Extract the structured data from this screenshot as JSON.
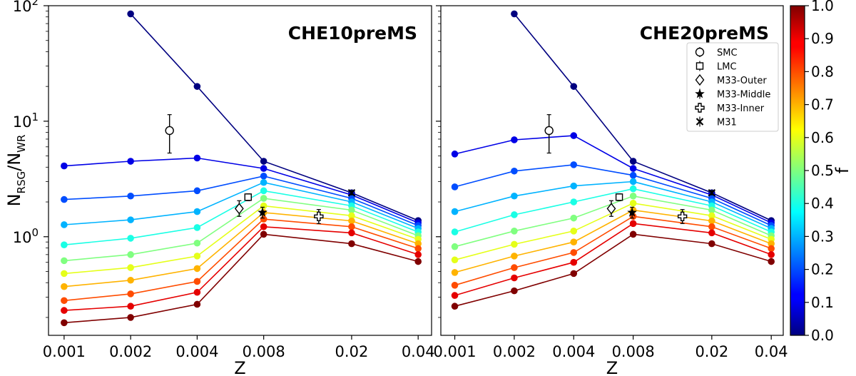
{
  "chart_data": [
    {
      "type": "line",
      "title": "CHE10preMS",
      "xlabel": "Z",
      "ylabel": "N_RSG/N_WR",
      "xscale": "log",
      "yscale": "log",
      "xticks": [
        "0.001",
        "0.002",
        "0.004",
        "0.008",
        "0.02",
        "0.04"
      ],
      "x": [
        0.001,
        0.002,
        0.004,
        0.008,
        0.02,
        0.04
      ],
      "color_variable": "f",
      "series": [
        {
          "f": 0.0,
          "values": [
            null,
            85,
            20,
            4.5,
            2.4,
            1.38
          ]
        },
        {
          "f": 0.1,
          "values": [
            4.1,
            4.5,
            4.8,
            3.9,
            2.3,
            1.32
          ]
        },
        {
          "f": 0.2,
          "values": [
            2.1,
            2.25,
            2.5,
            3.35,
            2.15,
            1.25
          ]
        },
        {
          "f": 0.3,
          "values": [
            1.27,
            1.4,
            1.65,
            2.95,
            2.0,
            1.18
          ]
        },
        {
          "f": 0.4,
          "values": [
            0.85,
            0.97,
            1.2,
            2.5,
            1.85,
            1.1
          ]
        },
        {
          "f": 0.5,
          "values": [
            0.62,
            0.7,
            0.88,
            2.15,
            1.7,
            1.02
          ]
        },
        {
          "f": 0.6,
          "values": [
            0.48,
            0.54,
            0.68,
            1.85,
            1.52,
            0.95
          ]
        },
        {
          "f": 0.7,
          "values": [
            0.37,
            0.42,
            0.53,
            1.62,
            1.37,
            0.87
          ]
        },
        {
          "f": 0.8,
          "values": [
            0.28,
            0.32,
            0.41,
            1.42,
            1.22,
            0.79
          ]
        },
        {
          "f": 0.9,
          "values": [
            0.23,
            0.25,
            0.33,
            1.22,
            1.08,
            0.7
          ]
        },
        {
          "f": 1.0,
          "values": [
            0.18,
            0.2,
            0.26,
            1.05,
            0.87,
            0.61
          ]
        }
      ],
      "observations": [
        {
          "name": "SMC",
          "marker": "circle",
          "x": 0.003,
          "y": 8.3,
          "err_low": 5.3,
          "err_high": 11.4
        },
        {
          "name": "LMC",
          "marker": "square",
          "x": 0.0068,
          "y": 2.2,
          "err_low": 2.05,
          "err_high": 2.35
        },
        {
          "name": "M33-Outer",
          "marker": "diamond",
          "x": 0.0062,
          "y": 1.75,
          "err_low": 1.5,
          "err_high": 2.05
        },
        {
          "name": "M33-Middle",
          "marker": "star",
          "x": 0.0079,
          "y": 1.62,
          "err_low": 1.45,
          "err_high": 1.8
        },
        {
          "name": "M33-Inner",
          "marker": "plus",
          "x": 0.0142,
          "y": 1.5,
          "err_low": 1.3,
          "err_high": 1.72
        },
        {
          "name": "M31",
          "marker": "x",
          "x": 0.02,
          "y": 2.4,
          "err_low": 2.3,
          "err_high": 2.5
        }
      ]
    },
    {
      "type": "line",
      "title": "CHE20preMS",
      "xlabel": "Z",
      "xscale": "log",
      "yscale": "log",
      "xticks": [
        "0.001",
        "0.002",
        "0.004",
        "0.008",
        "0.02",
        "0.04"
      ],
      "x": [
        0.001,
        0.002,
        0.004,
        0.008,
        0.02,
        0.04
      ],
      "color_variable": "f",
      "series": [
        {
          "f": 0.0,
          "values": [
            null,
            85,
            20,
            4.5,
            2.4,
            1.38
          ]
        },
        {
          "f": 0.1,
          "values": [
            5.2,
            6.9,
            7.5,
            3.9,
            2.3,
            1.32
          ]
        },
        {
          "f": 0.2,
          "values": [
            2.7,
            3.7,
            4.2,
            3.4,
            2.15,
            1.25
          ]
        },
        {
          "f": 0.3,
          "values": [
            1.65,
            2.25,
            2.75,
            3.0,
            2.0,
            1.18
          ]
        },
        {
          "f": 0.4,
          "values": [
            1.1,
            1.55,
            2.0,
            2.6,
            1.85,
            1.1
          ]
        },
        {
          "f": 0.5,
          "values": [
            0.82,
            1.12,
            1.45,
            2.25,
            1.7,
            1.02
          ]
        },
        {
          "f": 0.6,
          "values": [
            0.63,
            0.86,
            1.12,
            1.95,
            1.52,
            0.95
          ]
        },
        {
          "f": 0.7,
          "values": [
            0.49,
            0.68,
            0.9,
            1.7,
            1.37,
            0.87
          ]
        },
        {
          "f": 0.8,
          "values": [
            0.38,
            0.54,
            0.73,
            1.5,
            1.22,
            0.79
          ]
        },
        {
          "f": 0.9,
          "values": [
            0.31,
            0.44,
            0.6,
            1.3,
            1.08,
            0.7
          ]
        },
        {
          "f": 1.0,
          "values": [
            0.25,
            0.34,
            0.48,
            1.05,
            0.87,
            0.61
          ]
        }
      ],
      "observations": [
        {
          "name": "SMC",
          "marker": "circle",
          "x": 0.003,
          "y": 8.3,
          "err_low": 5.3,
          "err_high": 11.4
        },
        {
          "name": "LMC",
          "marker": "square",
          "x": 0.0068,
          "y": 2.2,
          "err_low": 2.05,
          "err_high": 2.35
        },
        {
          "name": "M33-Outer",
          "marker": "diamond",
          "x": 0.0062,
          "y": 1.75,
          "err_low": 1.5,
          "err_high": 2.05
        },
        {
          "name": "M33-Middle",
          "marker": "star",
          "x": 0.0079,
          "y": 1.62,
          "err_low": 1.45,
          "err_high": 1.8
        },
        {
          "name": "M33-Inner",
          "marker": "plus",
          "x": 0.0142,
          "y": 1.5,
          "err_low": 1.3,
          "err_high": 1.72
        },
        {
          "name": "M31",
          "marker": "x",
          "x": 0.02,
          "y": 2.4,
          "err_low": 2.3,
          "err_high": 2.5
        }
      ]
    }
  ],
  "y_tick_labels": {
    "base": "10",
    "exps": [
      "0",
      "1",
      "2"
    ]
  },
  "legend": {
    "placement": "top-right of right panel",
    "entries": [
      "SMC",
      "LMC",
      "M33-Outer",
      "M33-Middle",
      "M33-Inner",
      "M31"
    ]
  },
  "colorbar": {
    "label": "f",
    "colormap": "jet",
    "min": 0.0,
    "max": 1.0,
    "ticks": [
      "0.0",
      "0.1",
      "0.2",
      "0.3",
      "0.4",
      "0.5",
      "0.6",
      "0.7",
      "0.8",
      "0.9",
      "1.0"
    ]
  }
}
